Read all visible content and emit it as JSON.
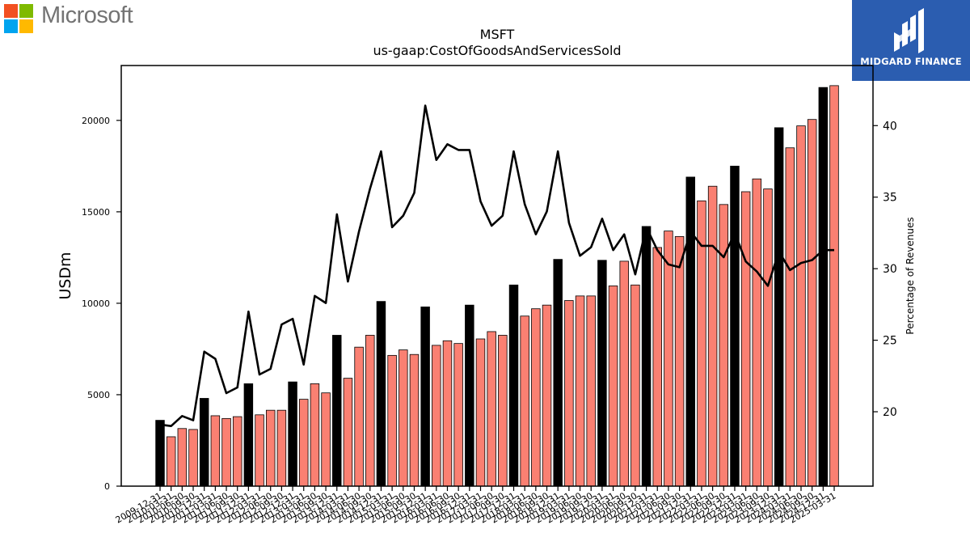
{
  "header": {
    "left_logo": {
      "icon": "microsoft-logo-icon",
      "text": "Microsoft",
      "colors": [
        "#f25022",
        "#7fba00",
        "#00a4ef",
        "#ffb900"
      ]
    },
    "right_logo": {
      "icon": "midgard-finance-logo-icon",
      "text": "MIDGARD FINANCE",
      "background": "#2b5db0"
    }
  },
  "chart_data": {
    "type": "bar",
    "title": "MSFT",
    "subtitle": "us-gaap:CostOfGoodsAndServicesSold",
    "ylabel": "USDm",
    "y2label": "Percentage of Revenues",
    "ylim": [
      0,
      23000
    ],
    "y2lim": [
      14.8,
      44.2
    ],
    "yticks": [
      0,
      5000,
      10000,
      15000,
      20000
    ],
    "y2ticks": [
      20,
      25,
      30,
      35,
      40
    ],
    "bar_colors": {
      "annual": "#000000",
      "quarterly": "#fa8072"
    },
    "line_color": "#000000",
    "categories": [
      "2009-12-31",
      "2010-03-31",
      "2010-06-30",
      "2010-09-30",
      "2010-12-31",
      "2011-03-31",
      "2011-06-30",
      "2011-09-30",
      "2011-12-31",
      "2012-03-31",
      "2012-06-30",
      "2012-09-30",
      "2012-12-31",
      "2013-03-31",
      "2013-06-30",
      "2013-09-30",
      "2013-12-31",
      "2014-03-31",
      "2014-06-30",
      "2014-09-30",
      "2014-12-31",
      "2015-03-31",
      "2015-06-30",
      "2015-09-30",
      "2015-12-31",
      "2016-03-31",
      "2016-06-30",
      "2016-09-30",
      "2016-12-31",
      "2017-03-31",
      "2017-06-30",
      "2017-09-30",
      "2017-12-31",
      "2018-03-31",
      "2018-06-30",
      "2018-09-30",
      "2018-12-31",
      "2019-03-31",
      "2019-06-30",
      "2019-09-30",
      "2019-12-31",
      "2020-03-31",
      "2020-06-30",
      "2020-09-30",
      "2020-12-31",
      "2021-03-31",
      "2021-06-30",
      "2021-09-30",
      "2021-12-31",
      "2022-03-31",
      "2022-06-30",
      "2022-09-30",
      "2022-12-31",
      "2023-03-31",
      "2023-06-30",
      "2023-09-30",
      "2023-12-31",
      "2024-03-31",
      "2024-06-30",
      "2024-09-30",
      "2024-12-31",
      "2025-03-31"
    ],
    "series": [
      {
        "kind": "bar",
        "annual": [
          true,
          false,
          false,
          false,
          true,
          false,
          false,
          false,
          true,
          false,
          false,
          false,
          true,
          false,
          false,
          false,
          true,
          false,
          false,
          false,
          true,
          false,
          false,
          false,
          true,
          false,
          false,
          false,
          true,
          false,
          false,
          false,
          true,
          false,
          false,
          false,
          true,
          false,
          false,
          false,
          true,
          false,
          false,
          false,
          true,
          false,
          false,
          false,
          true,
          false,
          false,
          false,
          true,
          false,
          false,
          false,
          true,
          false,
          false,
          false,
          true,
          false
        ],
        "values": [
          3600,
          2700,
          3150,
          3100,
          4800,
          3850,
          3700,
          3800,
          5600,
          3900,
          4150,
          4150,
          5700,
          4750,
          5600,
          5100,
          8250,
          5900,
          7600,
          8250,
          10100,
          7150,
          7450,
          7200,
          9800,
          7700,
          7950,
          7800,
          9900,
          8050,
          8450,
          8250,
          11000,
          9300,
          9700,
          9900,
          12400,
          10150,
          10400,
          10400,
          12350,
          10950,
          12300,
          11000,
          14200,
          13050,
          13950,
          13650,
          16900,
          15600,
          16400,
          15400,
          17500,
          16100,
          16800,
          16250,
          19600,
          18500,
          19700,
          20050,
          21800,
          21900
        ]
      },
      {
        "kind": "line",
        "name": "Percentage of Revenues",
        "values": [
          19.1,
          19.0,
          19.7,
          19.4,
          24.2,
          23.7,
          21.3,
          21.7,
          27.0,
          22.6,
          23.0,
          26.1,
          26.5,
          23.3,
          28.1,
          27.6,
          33.8,
          29.1,
          32.6,
          35.6,
          38.2,
          32.9,
          33.7,
          35.3,
          41.4,
          37.6,
          38.7,
          38.3,
          38.3,
          34.7,
          33.0,
          33.7,
          38.2,
          34.5,
          32.4,
          34.0,
          38.2,
          33.2,
          30.9,
          31.5,
          33.5,
          31.3,
          32.4,
          29.6,
          32.9,
          31.3,
          30.3,
          30.1,
          32.6,
          31.6,
          31.6,
          30.8,
          32.5,
          30.5,
          29.8,
          28.8,
          31.2,
          29.9,
          30.4,
          30.6,
          31.3,
          31.3
        ]
      }
    ]
  }
}
